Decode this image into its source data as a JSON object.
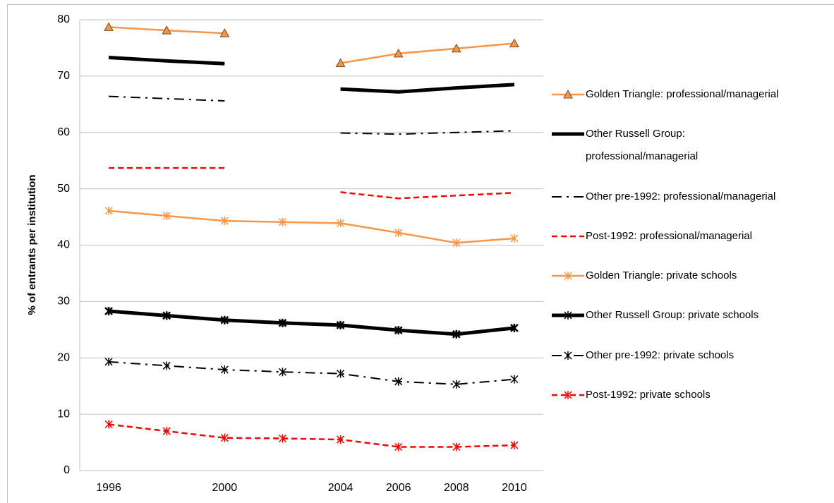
{
  "chart_data": {
    "type": "line",
    "y_label": "% of entrants per institution",
    "categories": [
      "1996",
      null,
      "2000",
      null,
      "2004",
      "2006",
      "2008",
      "2010"
    ],
    "ylim": [
      0,
      80
    ],
    "yticks": [
      0,
      10,
      20,
      30,
      40,
      50,
      60,
      70,
      80
    ],
    "grid": true,
    "legend": "right",
    "series": [
      {
        "name": "Golden Triangle: professional/managerial",
        "color": "#f79646",
        "line_style": "solid",
        "marker": "triangle",
        "values": [
          78.7,
          78.1,
          77.6,
          null,
          72.3,
          74.0,
          74.9,
          75.8
        ]
      },
      {
        "name": "Other Russell Group: professional/managerial",
        "color": "#000000",
        "line_style": "thick",
        "marker": "none",
        "values": [
          73.3,
          72.7,
          72.2,
          null,
          67.7,
          67.2,
          67.9,
          68.5
        ]
      },
      {
        "name": "Other pre-1992: professional/managerial",
        "color": "#000000",
        "line_style": "dashdot",
        "marker": "none",
        "values": [
          66.4,
          66.0,
          65.6,
          null,
          59.9,
          59.7,
          60.0,
          60.3
        ]
      },
      {
        "name": "Post-1992: professional/managerial",
        "color": "#ff0000",
        "line_style": "dashed",
        "marker": "none",
        "values": [
          53.7,
          53.7,
          53.7,
          null,
          49.4,
          48.3,
          48.8,
          49.3
        ]
      },
      {
        "name": "Golden Triangle: private schools",
        "color": "#f79646",
        "line_style": "solid",
        "marker": "asterisk",
        "values": [
          46.1,
          45.2,
          44.3,
          44.1,
          43.9,
          42.2,
          40.4,
          41.2
        ]
      },
      {
        "name": "Other Russell Group: private schools",
        "color": "#000000",
        "line_style": "thick",
        "marker": "asterisk",
        "values": [
          28.3,
          27.5,
          26.7,
          26.2,
          25.8,
          24.9,
          24.2,
          25.3
        ]
      },
      {
        "name": "Other pre-1992: private schools",
        "color": "#000000",
        "line_style": "dashdot",
        "marker": "asterisk",
        "values": [
          19.3,
          18.6,
          17.9,
          17.5,
          17.2,
          15.8,
          15.3,
          16.2
        ]
      },
      {
        "name": "Post-1992: private schools",
        "color": "#ff0000",
        "line_style": "dashed",
        "marker": "asterisk",
        "values": [
          8.2,
          7.0,
          5.8,
          5.7,
          5.5,
          4.2,
          4.2,
          4.5
        ]
      }
    ]
  }
}
